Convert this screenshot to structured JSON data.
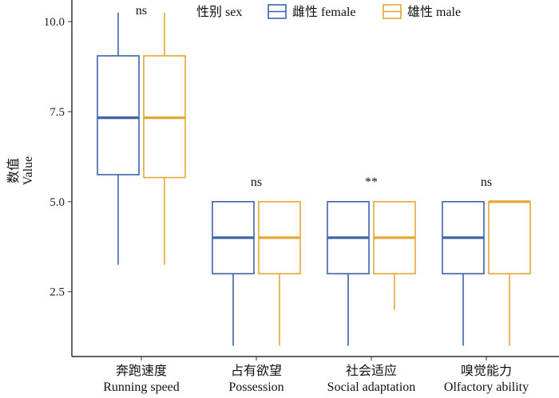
{
  "chart_data": {
    "type": "box",
    "ylabel": [
      "数值",
      "Value"
    ],
    "ylim": [
      0.7,
      10.6
    ],
    "yticks": [
      2.5,
      5.0,
      7.5,
      10.0
    ],
    "ytick_labels": [
      "2.5",
      "5.0",
      "7.5",
      "10.0"
    ],
    "categories": [
      {
        "zh": "奔跑速度",
        "en": "Running speed"
      },
      {
        "zh": "占有欲望",
        "en": "Possession"
      },
      {
        "zh": "社会适应",
        "en": "Social adaptation"
      },
      {
        "zh": "嗅觉能力",
        "en": "Olfactory ability"
      }
    ],
    "legend": {
      "title": "性别 sex",
      "position": "top",
      "entries": [
        "雌性 female",
        "雄性 male"
      ]
    },
    "colors": {
      "female": "#3d64a6",
      "male": "#e3a834"
    },
    "significance": [
      "ns",
      "ns",
      "**",
      "ns"
    ],
    "series": [
      {
        "name": "雌性 female",
        "boxes": [
          {
            "min": 3.25,
            "q1": 5.75,
            "median": 7.33,
            "q3": 9.05,
            "max": 10.25
          },
          {
            "min": 1.0,
            "q1": 3.0,
            "median": 4.0,
            "q3": 5.0,
            "max": 5.0
          },
          {
            "min": 1.0,
            "q1": 3.0,
            "median": 4.0,
            "q3": 5.0,
            "max": 5.0
          },
          {
            "min": 1.0,
            "q1": 3.0,
            "median": 4.0,
            "q3": 5.0,
            "max": 5.0
          }
        ]
      },
      {
        "name": "雄性 male",
        "boxes": [
          {
            "min": 3.25,
            "q1": 5.67,
            "median": 7.33,
            "q3": 9.05,
            "max": 10.25
          },
          {
            "min": 1.0,
            "q1": 3.0,
            "median": 4.0,
            "q3": 5.0,
            "max": 5.0
          },
          {
            "min": 2.0,
            "q1": 3.0,
            "median": 4.0,
            "q3": 5.0,
            "max": 5.0
          },
          {
            "min": 1.0,
            "q1": 3.0,
            "median": 5.0,
            "q3": 5.0,
            "max": 5.0
          }
        ]
      }
    ]
  }
}
